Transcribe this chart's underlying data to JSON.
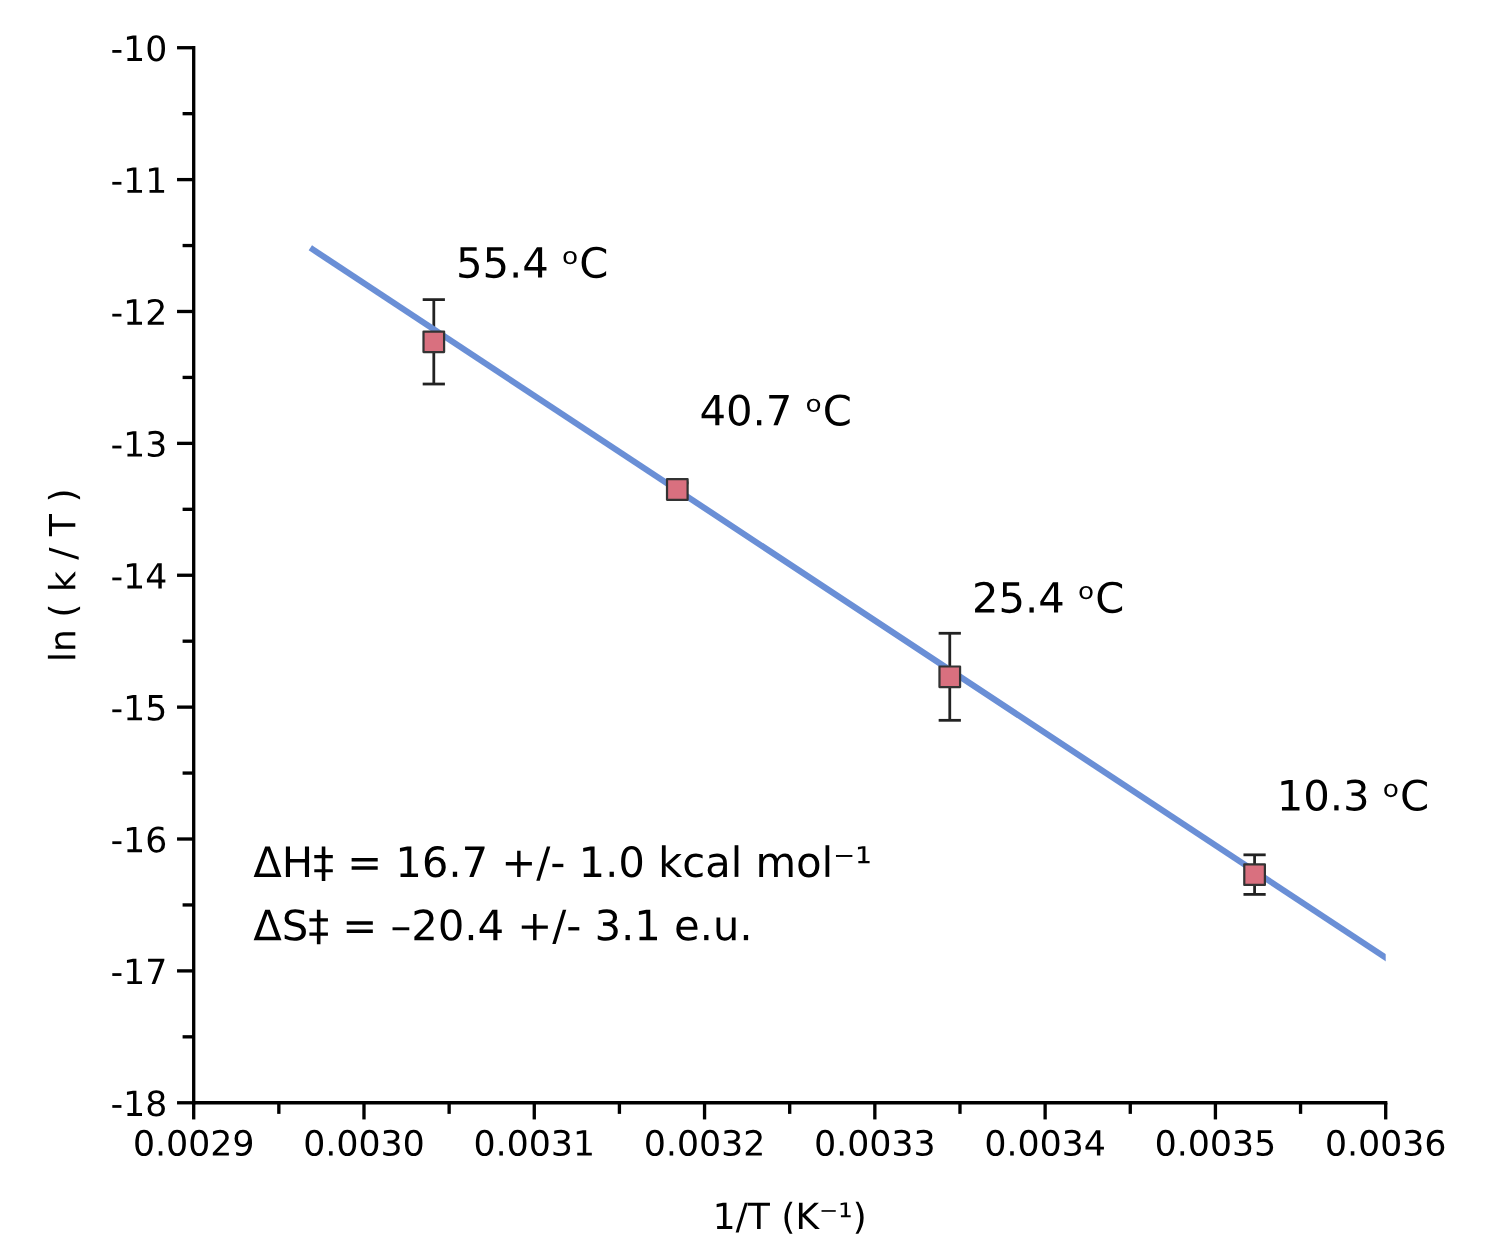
{
  "chart_data": {
    "type": "scatter",
    "xlabel": "1/T (K⁻¹)",
    "ylabel": "ln ( k / T )",
    "series": [
      {
        "color": "#d9707f",
        "marker": "square",
        "x": [
          0.003041,
          0.003184,
          0.003344,
          0.003523
        ],
        "values": [
          -12.23,
          -13.35,
          -14.77,
          -16.27
        ],
        "errors": [
          0.32,
          0.05,
          0.33,
          0.15
        ]
      },
      {
        "type": "line",
        "color": "#6a8fd6",
        "marker": "none",
        "line_style": "solid",
        "x": [
          0.00297,
          0.0036
        ],
        "values": [
          -11.53,
          -16.9
        ]
      }
    ],
    "annotations": [
      {
        "text": "55.4 ᵒC",
        "x": 0.003041,
        "y": -12.23
      },
      {
        "text": "40.7 ᵒC",
        "x": 0.003184,
        "y": -13.35
      },
      {
        "text": "25.4 ᵒC",
        "x": 0.003344,
        "y": -14.77
      },
      {
        "text": "10.3 ᵒC",
        "x": 0.003523,
        "y": -16.27
      },
      "ΔH‡ = 16.7 +/- 1.0 kcal mol⁻¹",
      "ΔS‡ = –20.4 +/- 3.1 e.u."
    ],
    "xlim": [
      0.0029,
      0.0036
    ],
    "ylim": [
      -18,
      -10
    ],
    "xticks": [
      {
        "value": 0.0029,
        "label": "0.0029"
      },
      {
        "value": 0.003,
        "label": "0.0030"
      },
      {
        "value": 0.0031,
        "label": "0.0031"
      },
      {
        "value": 0.0032,
        "label": "0.0032"
      },
      {
        "value": 0.0033,
        "label": "0.0033"
      },
      {
        "value": 0.0034,
        "label": "0.0034"
      },
      {
        "value": 0.0035,
        "label": "0.0035"
      },
      {
        "value": 0.0036,
        "label": "0.0036"
      }
    ],
    "yticks": [
      -18,
      -17,
      -16,
      -15,
      -14,
      -13,
      -12,
      -11,
      -10
    ],
    "grid": false,
    "legend": false
  }
}
